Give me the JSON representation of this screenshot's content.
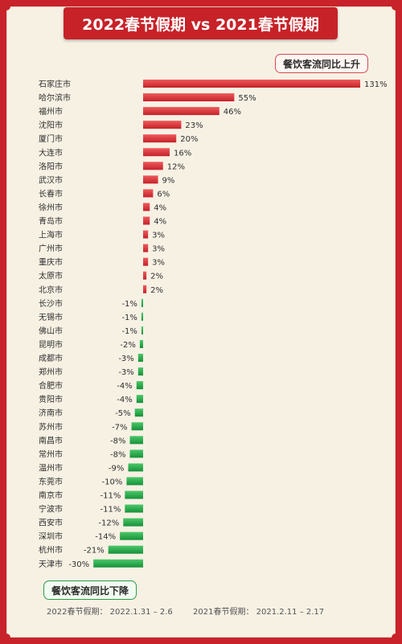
{
  "title": "2022春节假期 vs 2021春节假期",
  "legend_up": "餐饮客流同比上升",
  "legend_down": "餐饮客流同比下降",
  "footnote_2022": "2022春节假期： 2022.1.31 – 2.6",
  "footnote_2021": "2021春节假期： 2021.2.11 – 2.17",
  "colors": {
    "positive": "#d92f33",
    "negative": "#22a545",
    "background": "#f7f1e4",
    "frame": "#c8222a"
  },
  "chart_data": {
    "type": "bar",
    "orientation": "horizontal",
    "title": "2022春节假期 vs 2021春节假期",
    "categories": [
      "石家庄市",
      "哈尔滨市",
      "福州市",
      "沈阳市",
      "厦门市",
      "大连市",
      "洛阳市",
      "武汉市",
      "长春市",
      "徐州市",
      "青岛市",
      "上海市",
      "广州市",
      "重庆市",
      "太原市",
      "北京市",
      "长沙市",
      "无锡市",
      "佛山市",
      "昆明市",
      "成都市",
      "郑州市",
      "合肥市",
      "贵阳市",
      "济南市",
      "苏州市",
      "南昌市",
      "常州市",
      "温州市",
      "东莞市",
      "南京市",
      "宁波市",
      "西安市",
      "深圳市",
      "杭州市",
      "天津市"
    ],
    "values": [
      131,
      55,
      46,
      23,
      20,
      16,
      12,
      9,
      6,
      4,
      4,
      3,
      3,
      3,
      2,
      2,
      -1,
      -1,
      -1,
      -2,
      -3,
      -3,
      -4,
      -4,
      -5,
      -7,
      -8,
      -8,
      -9,
      -10,
      -11,
      -11,
      -12,
      -14,
      -21,
      -30
    ],
    "value_labels": [
      "131%",
      "55%",
      "46%",
      "23%",
      "20%",
      "16%",
      "12%",
      "9%",
      "6%",
      "4%",
      "4%",
      "3%",
      "3%",
      "3%",
      "2%",
      "2%",
      "-1%",
      "-1%",
      "-1%",
      "-2%",
      "-3%",
      "-3%",
      "-4%",
      "-4%",
      "-5%",
      "-7%",
      "-8%",
      "-8%",
      "-9%",
      "-10%",
      "-11%",
      "-11%",
      "-12%",
      "-14%",
      "-21%",
      "-30%"
    ],
    "unit": "%",
    "grid": false
  }
}
